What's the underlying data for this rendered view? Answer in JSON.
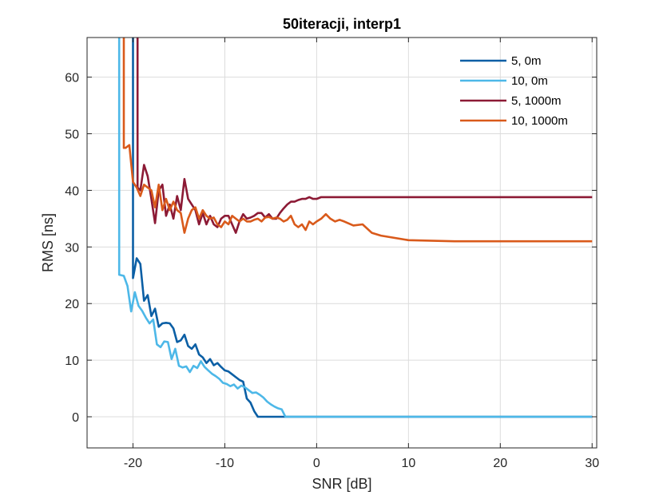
{
  "chart_data": {
    "type": "line",
    "title": "50iteracji, interp1",
    "xlabel": "SNR [dB]",
    "ylabel": "RMS [ns]",
    "xlim": [
      -25,
      30.5
    ],
    "ylim": [
      -5.5,
      67
    ],
    "xticks": [
      -20,
      -10,
      0,
      10,
      20,
      30
    ],
    "yticks": [
      0,
      10,
      20,
      30,
      40,
      50,
      60
    ],
    "grid": true,
    "legend_position": "top-right",
    "series": [
      {
        "name": "5, 0m",
        "color": "#0b5fa5",
        "x": [
          -20,
          -20,
          -19.6,
          -19.2,
          -18.8,
          -18.4,
          -18,
          -17.6,
          -17.2,
          -16.8,
          -16.4,
          -16,
          -15.6,
          -15.2,
          -14.8,
          -14.4,
          -14,
          -13.6,
          -13.2,
          -12.8,
          -12.4,
          -12,
          -11.6,
          -11.2,
          -10.8,
          -10.4,
          -10,
          -9.6,
          -9.2,
          -8.8,
          -8.4,
          -8,
          -7.6,
          -7.2,
          -6.8,
          -6.4,
          -6,
          -5.6,
          -5,
          -4,
          -3,
          -2,
          -1,
          0,
          5,
          10,
          15,
          20,
          25,
          30
        ],
        "y": [
          67,
          24.5,
          28,
          27,
          20.5,
          21.5,
          17.8,
          19.1,
          15.9,
          16.5,
          16.6,
          16.5,
          15.6,
          13.2,
          13.5,
          14.5,
          12.5,
          12.0,
          12.8,
          11.0,
          10.5,
          9.5,
          10.2,
          9.1,
          9.5,
          8.8,
          8.2,
          8.0,
          7.5,
          7.0,
          6.5,
          6.2,
          3.2,
          2.5,
          1.0,
          0,
          0,
          0,
          0,
          0,
          0,
          0,
          0,
          0,
          0,
          0,
          0,
          0,
          0,
          0
        ]
      },
      {
        "name": "10, 0m",
        "color": "#4db8e8",
        "x": [
          -21.5,
          -21.5,
          -21,
          -20.6,
          -20.2,
          -19.8,
          -19.4,
          -19,
          -18.6,
          -18.2,
          -17.8,
          -17.4,
          -17,
          -16.6,
          -16.2,
          -15.8,
          -15.4,
          -15,
          -14.6,
          -14.2,
          -13.8,
          -13.4,
          -13,
          -12.6,
          -12.2,
          -11.8,
          -11.4,
          -11,
          -10.6,
          -10.2,
          -9.8,
          -9.4,
          -9,
          -8.6,
          -8.2,
          -7.8,
          -7.4,
          -7,
          -6.6,
          -6.2,
          -5.8,
          -5.4,
          -5,
          -4.6,
          -4.2,
          -3.8,
          -3.4,
          -3,
          -2.6,
          -2.2,
          -1.8,
          -1.4,
          -1,
          -0.6,
          0,
          5,
          10,
          15,
          20,
          25,
          30
        ],
        "y": [
          67,
          25.1,
          24.9,
          23.1,
          18.6,
          22.0,
          19.6,
          18.7,
          17.5,
          16.5,
          17.2,
          12.8,
          12.3,
          13.3,
          13.2,
          10.2,
          12.0,
          9.0,
          8.7,
          8.9,
          7.9,
          9.0,
          8.6,
          9.8,
          8.8,
          8.2,
          7.6,
          7.2,
          6.7,
          6.0,
          5.8,
          5.4,
          5.7,
          5.0,
          5.5,
          5.2,
          4.7,
          4.2,
          4.3,
          3.9,
          3.4,
          2.7,
          2.2,
          1.8,
          1.5,
          1.3,
          0,
          0,
          0,
          0,
          0,
          0,
          0,
          0,
          0,
          0,
          0,
          0,
          0,
          0,
          0
        ]
      },
      {
        "name": "5, 1000m",
        "color": "#8c1a35",
        "x": [
          -19.5,
          -19.5,
          -19.2,
          -18.8,
          -18.4,
          -18,
          -17.6,
          -17.2,
          -16.8,
          -16.4,
          -16,
          -15.6,
          -15.2,
          -14.8,
          -14.4,
          -14,
          -13.6,
          -13.2,
          -12.8,
          -12.4,
          -12,
          -11.6,
          -11.2,
          -10.8,
          -10.4,
          -10,
          -9.6,
          -9.2,
          -8.8,
          -8.4,
          -8,
          -7.6,
          -7.2,
          -6.8,
          -6.4,
          -6,
          -5.6,
          -5.2,
          -4.8,
          -4.4,
          -4,
          -3.6,
          -3.2,
          -2.8,
          -2.4,
          -2,
          -1.6,
          -1.2,
          -0.8,
          -0.4,
          0,
          0.5,
          1,
          2,
          5,
          10,
          15,
          20,
          25,
          30
        ],
        "y": [
          67,
          40.5,
          40.0,
          44.5,
          42.5,
          38.5,
          34.2,
          40.0,
          41.0,
          35.5,
          37.5,
          35.0,
          39.0,
          36.5,
          42.0,
          38.5,
          37.5,
          36.5,
          34.0,
          36.0,
          34.0,
          35.5,
          34.0,
          33.5,
          35.0,
          35.5,
          35.5,
          34.0,
          32.5,
          34.5,
          35.8,
          35.0,
          35.2,
          35.5,
          36.0,
          36.0,
          35.2,
          35.8,
          35.0,
          35.0,
          36.0,
          36.8,
          37.5,
          38.0,
          38.0,
          38.3,
          38.5,
          38.5,
          38.8,
          38.5,
          38.5,
          38.8,
          38.8,
          38.8,
          38.8,
          38.8,
          38.8,
          38.8,
          38.8,
          38.8
        ]
      },
      {
        "name": "10, 1000m",
        "color": "#d95a1b",
        "x": [
          -21,
          -21,
          -20.8,
          -20.4,
          -20,
          -19.6,
          -19.2,
          -18.8,
          -18.4,
          -18,
          -17.6,
          -17.2,
          -16.8,
          -16.4,
          -16,
          -15.6,
          -15.2,
          -14.8,
          -14.4,
          -14,
          -13.6,
          -13.2,
          -12.8,
          -12.4,
          -12,
          -11.6,
          -11.2,
          -10.8,
          -10.4,
          -10,
          -9.6,
          -9.2,
          -8.8,
          -8.4,
          -8,
          -7.6,
          -7.2,
          -6.8,
          -6.4,
          -6,
          -5.6,
          -5.2,
          -4.8,
          -4.4,
          -4,
          -3.6,
          -3.2,
          -2.8,
          -2.4,
          -2,
          -1.6,
          -1.2,
          -0.8,
          -0.4,
          0,
          0.5,
          1,
          1.5,
          2,
          2.5,
          3,
          4,
          5,
          6,
          7,
          10,
          15,
          20,
          25,
          30
        ],
        "y": [
          67,
          47.5,
          47.5,
          48.0,
          41.5,
          40.5,
          39.0,
          41.0,
          40.5,
          40.0,
          37.0,
          41.0,
          36.5,
          38.5,
          36.5,
          38.0,
          36.5,
          36.0,
          32.5,
          35.0,
          36.5,
          37.0,
          35.0,
          36.5,
          35.5,
          35.0,
          35.2,
          34.0,
          33.5,
          34.5,
          34.0,
          35.5,
          35.0,
          34.5,
          35.0,
          34.5,
          34.5,
          34.8,
          35.0,
          34.5,
          35.2,
          35.3,
          35.0,
          35.2,
          35.0,
          34.5,
          34.8,
          35.5,
          34.0,
          33.5,
          34.0,
          33.0,
          34.5,
          34.0,
          34.5,
          35.0,
          35.8,
          35.0,
          34.5,
          34.8,
          34.5,
          33.8,
          34.0,
          32.5,
          32.0,
          31.2,
          31.0,
          31.0,
          31.0,
          31.0
        ]
      }
    ]
  }
}
